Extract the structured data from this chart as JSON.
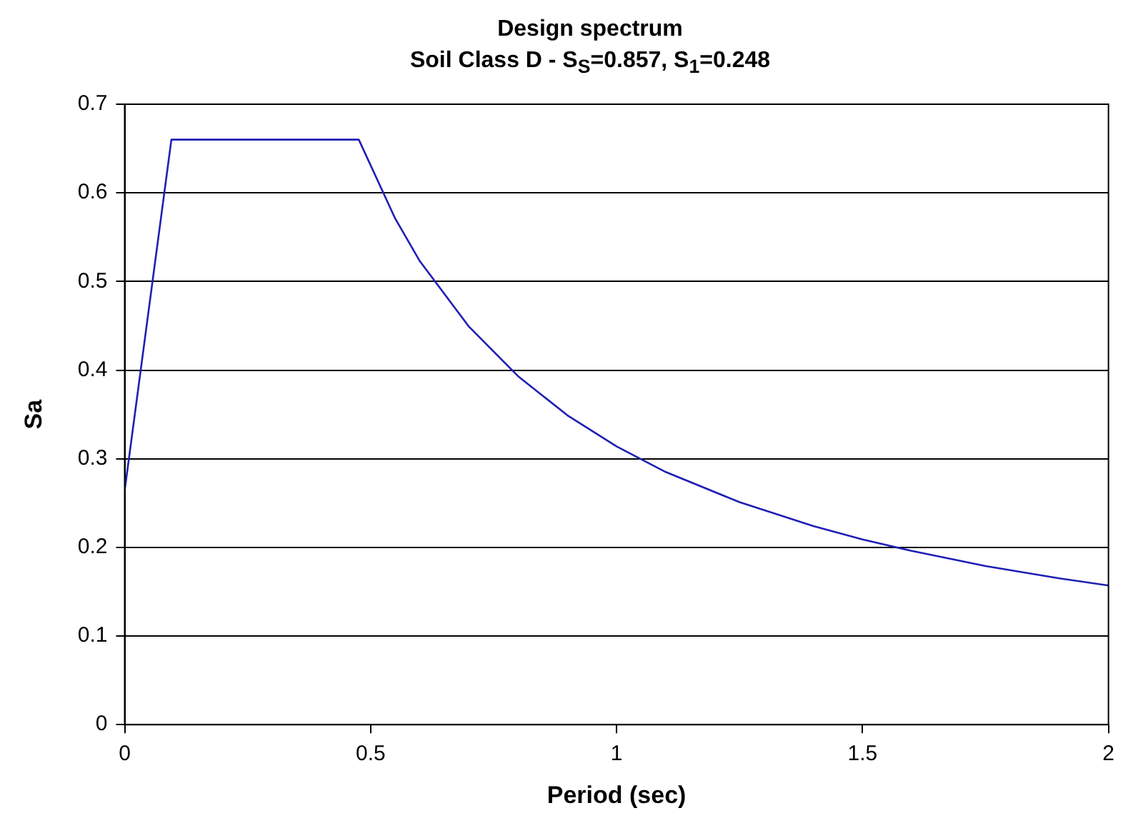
{
  "chart_data": {
    "type": "line",
    "title": "Design spectrum",
    "subtitle": "Soil Class D - S$_{S}$=0.857, S$_{1}$=0.248",
    "xlabel": "Period (sec)",
    "ylabel": "Sa",
    "x": [
      0,
      0.095,
      0.476,
      0.55,
      0.6,
      0.7,
      0.8,
      0.9,
      1.0,
      1.1,
      1.25,
      1.4,
      1.5,
      1.6,
      1.75,
      1.9,
      2.0
    ],
    "series": [
      {
        "color": "#1f1fb4",
        "values": [
          0.264,
          0.66,
          0.66,
          0.571,
          0.523,
          0.449,
          0.393,
          0.349,
          0.314,
          0.285,
          0.251,
          0.224,
          0.209,
          0.196,
          0.179,
          0.165,
          0.157
        ]
      }
    ],
    "xlim": [
      0,
      2
    ],
    "xticks": [
      0,
      0.5,
      1,
      1.5,
      2
    ],
    "ylim": [
      0,
      0.7
    ],
    "yticks": [
      0,
      0.1,
      0.2,
      0.3,
      0.4,
      0.5,
      0.6,
      0.7
    ],
    "grid": "y",
    "legend": false,
    "marker": "none",
    "line_style": "solid"
  }
}
